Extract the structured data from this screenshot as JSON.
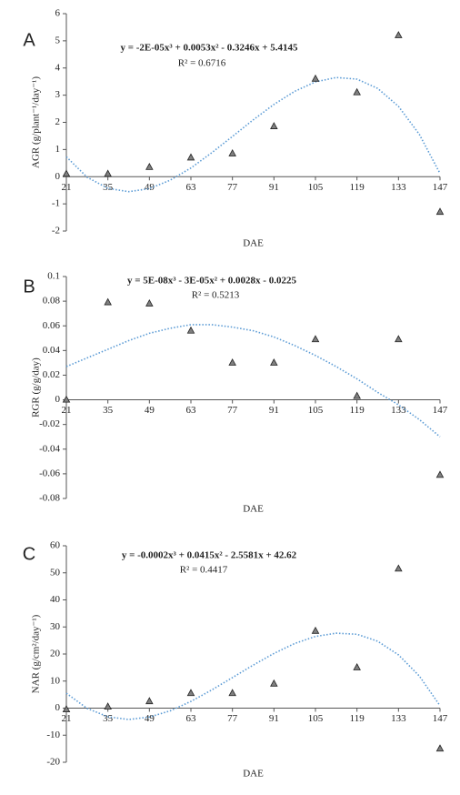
{
  "chart_data": [
    {
      "type": "scatter",
      "panel_label": "A",
      "x_label": "DAE",
      "y_label": "AGR (g/plant⁻¹/day⁻¹)",
      "x": [
        21,
        35,
        49,
        63,
        77,
        91,
        105,
        119,
        133,
        147
      ],
      "series": [
        {
          "color": "#808080",
          "values": [
            0.1,
            0.1,
            0.35,
            0.7,
            0.85,
            1.85,
            3.6,
            3.1,
            5.2,
            -1.3
          ]
        }
      ],
      "trendline": {
        "color": "#5b9bd5",
        "equation": "y = -2E-05x³ + 0.0053x² - 0.3246x + 5.4145",
        "r_squared": "R² = 0.6716",
        "x": [
          21,
          28,
          35,
          42,
          49,
          56,
          63,
          70,
          77,
          84,
          91,
          98,
          105,
          112,
          119,
          126,
          133,
          140,
          147
        ],
        "values": [
          0.73,
          -0.02,
          -0.43,
          -0.55,
          -0.44,
          -0.13,
          0.32,
          0.88,
          1.48,
          2.09,
          2.66,
          3.14,
          3.49,
          3.65,
          3.59,
          3.25,
          2.59,
          1.56,
          0.12
        ]
      },
      "xlim": [
        21,
        147
      ],
      "xticks": [
        21,
        35,
        49,
        63,
        77,
        91,
        105,
        119,
        133,
        147
      ],
      "ylim": [
        -2,
        6
      ],
      "yticks": [
        -2,
        -1,
        0,
        1,
        2,
        3,
        4,
        5,
        6
      ]
    },
    {
      "type": "scatter",
      "panel_label": "B",
      "x_label": "DAE",
      "y_label": "RGR  (g/g/day)",
      "x": [
        21,
        35,
        49,
        63,
        77,
        91,
        105,
        119,
        133,
        147
      ],
      "series": [
        {
          "color": "#808080",
          "values": [
            0.0,
            0.079,
            0.078,
            0.056,
            0.03,
            0.03,
            0.049,
            0.003,
            0.049,
            -0.061
          ]
        }
      ],
      "trendline": {
        "color": "#5b9bd5",
        "equation": "y = 5E-08x³ - 3E-05x² + 0.0028x - 0.0225",
        "r_squared": "R² = 0.5213",
        "x": [
          21,
          28,
          35,
          42,
          49,
          56,
          63,
          70,
          77,
          84,
          91,
          98,
          105,
          112,
          119,
          126,
          133,
          140,
          147
        ],
        "values": [
          0.027,
          0.034,
          0.041,
          0.048,
          0.054,
          0.058,
          0.061,
          0.061,
          0.059,
          0.056,
          0.051,
          0.044,
          0.036,
          0.027,
          0.017,
          0.006,
          -0.004,
          -0.016,
          -0.03
        ]
      },
      "xlim": [
        21,
        147
      ],
      "xticks": [
        21,
        35,
        49,
        63,
        77,
        91,
        105,
        119,
        133,
        147
      ],
      "ylim": [
        -0.08,
        0.1
      ],
      "yticks": [
        -0.08,
        -0.06,
        -0.04,
        -0.02,
        0,
        0.02,
        0.04,
        0.06,
        0.08,
        0.1
      ]
    },
    {
      "type": "scatter",
      "panel_label": "C",
      "x_label": "DAE",
      "y_label": "NAR (g/cm²/day⁻¹)",
      "x": [
        21,
        35,
        49,
        63,
        77,
        91,
        105,
        119,
        133,
        147
      ],
      "series": [
        {
          "color": "#808080",
          "values": [
            -0.5,
            0.5,
            2.5,
            5.5,
            5.5,
            9,
            28.5,
            15,
            51.5,
            -15
          ]
        }
      ],
      "trendline": {
        "color": "#5b9bd5",
        "equation": "y = -0.0002x³ + 0.0415x² - 2.5581x + 42.62",
        "r_squared": "R² = 0.4417",
        "x": [
          21,
          28,
          35,
          42,
          49,
          56,
          63,
          70,
          77,
          84,
          91,
          98,
          105,
          112,
          119,
          126,
          133,
          140,
          147
        ],
        "values": [
          5.5,
          -0.1,
          -3.2,
          -4.2,
          -3.3,
          -1.0,
          2.5,
          6.7,
          11.3,
          15.9,
          20.2,
          23.9,
          26.5,
          27.7,
          27.3,
          24.7,
          19.7,
          11.9,
          0.9
        ]
      },
      "xlim": [
        21,
        147
      ],
      "xticks": [
        21,
        35,
        49,
        63,
        77,
        91,
        105,
        119,
        133,
        147
      ],
      "ylim": [
        -20,
        60
      ],
      "yticks": [
        -20,
        -10,
        0,
        10,
        20,
        30,
        40,
        50,
        60
      ]
    }
  ]
}
